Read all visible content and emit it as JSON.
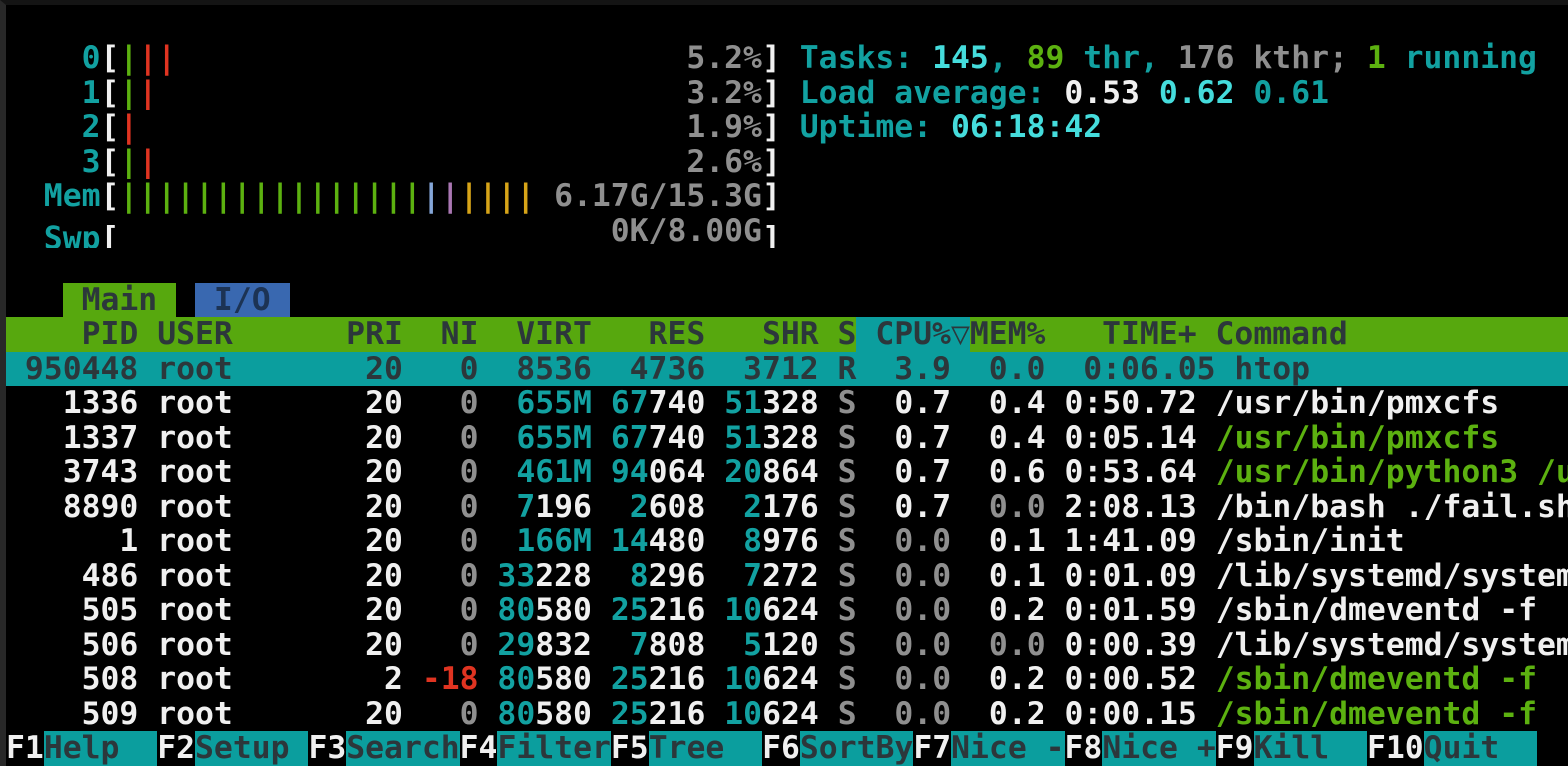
{
  "colors": {
    "background": "#000000",
    "teal": "#12a1a1",
    "bright_cyan": "#45dcdc",
    "green": "#5cb110",
    "red": "#e03421",
    "gray": "#8f8f8f",
    "white": "#f0f0f0",
    "header_bg": "#57a80e",
    "selection_bg": "#0b9e9e",
    "tab_io_bg": "#3968b0",
    "mem_bar_blue": "#85a6d8",
    "mem_bar_purple": "#aa77b3",
    "mem_bar_orange": "#d7a418"
  },
  "meters": {
    "lines": [
      {
        "name": "cpu-meter-0",
        "label": "    0",
        "bars": [
          [
            "|",
            "gn"
          ],
          [
            "||",
            "rd"
          ]
        ],
        "value": "5.2%"
      },
      {
        "name": "cpu-meter-1",
        "label": "    1",
        "bars": [
          [
            "|",
            "gn"
          ],
          [
            "|",
            "rd"
          ]
        ],
        "value": "3.2%"
      },
      {
        "name": "cpu-meter-2",
        "label": "    2",
        "bars": [
          [
            "|",
            "rd"
          ]
        ],
        "value": "1.9%"
      },
      {
        "name": "cpu-meter-3",
        "label": "    3",
        "bars": [
          [
            "|",
            "gn"
          ],
          [
            "|",
            "rd"
          ]
        ],
        "value": "2.6%"
      },
      {
        "name": "memory-meter",
        "label": "  Mem",
        "bars": [
          [
            "||||||||||||||||",
            "gn"
          ],
          [
            "|",
            "bb"
          ],
          [
            "|",
            "bp"
          ],
          [
            "||||",
            "bo"
          ]
        ],
        "value": "6.17G/15.3G"
      },
      {
        "name": "swap-meter",
        "label": "  Swp",
        "bars": [],
        "value": "0K/8.00G"
      }
    ]
  },
  "summary": [
    {
      "name": "tasks-summary",
      "segments": [
        [
          "Tasks: ",
          "te"
        ],
        [
          "145",
          "cy"
        ],
        [
          ", ",
          "te"
        ],
        [
          "89",
          "gn"
        ],
        [
          " thr, ",
          "te"
        ],
        [
          "176 kthr",
          "gy"
        ],
        [
          "; ",
          "gy"
        ],
        [
          "1",
          "gn"
        ],
        [
          " running",
          "te"
        ]
      ]
    },
    {
      "name": "load-average",
      "segments": [
        [
          "Load average: ",
          "te"
        ],
        [
          "0.53",
          "w"
        ],
        [
          " ",
          "te"
        ],
        [
          "0.62",
          "cy"
        ],
        [
          " ",
          "te"
        ],
        [
          "0.61",
          "te"
        ]
      ]
    },
    {
      "name": "uptime",
      "segments": [
        [
          "Uptime: ",
          "te"
        ],
        [
          "06:18:42",
          "cy"
        ]
      ]
    }
  ],
  "tabs": {
    "indent": "   ",
    "main": " Main ",
    "gap": " ",
    "io": " I/O "
  },
  "process_table": {
    "header_segments": [
      [
        "    PID USER      PRI  NI  VIRT   RES   SHR S",
        "dk"
      ],
      [
        " CPU%▽",
        "dk sorted"
      ],
      [
        "MEM%   TIME+ Command",
        "dk"
      ]
    ],
    "rows": [
      {
        "selected": true,
        "segments": [
          [
            " 950448 root       20   0  8536  4736  3712 R  3.9  0.0  0:06.05 htop",
            "dk"
          ]
        ]
      },
      {
        "selected": false,
        "segments": [
          [
            "   1336 ",
            "w"
          ],
          [
            "root      ",
            "w"
          ],
          [
            " 20",
            "w"
          ],
          [
            " ",
            "w"
          ],
          [
            "  0",
            "gy"
          ],
          [
            " ",
            "w"
          ],
          [
            " 655M",
            "te"
          ],
          [
            " ",
            "w"
          ],
          [
            "67",
            "te"
          ],
          [
            "740",
            "w"
          ],
          [
            " ",
            "w"
          ],
          [
            "51",
            "te"
          ],
          [
            "328",
            "w"
          ],
          [
            " ",
            "w"
          ],
          [
            "S",
            "gy"
          ],
          [
            " ",
            "w"
          ],
          [
            " 0.7",
            "w"
          ],
          [
            " ",
            "w"
          ],
          [
            " 0.4",
            "w"
          ],
          [
            " 0:50.72",
            "w"
          ],
          [
            " ",
            "w"
          ],
          [
            "/usr/bin/pmxcfs",
            "w"
          ]
        ]
      },
      {
        "selected": false,
        "segments": [
          [
            "   1337 ",
            "w"
          ],
          [
            "root      ",
            "w"
          ],
          [
            " 20",
            "w"
          ],
          [
            " ",
            "w"
          ],
          [
            "  0",
            "gy"
          ],
          [
            " ",
            "w"
          ],
          [
            " 655M",
            "te"
          ],
          [
            " ",
            "w"
          ],
          [
            "67",
            "te"
          ],
          [
            "740",
            "w"
          ],
          [
            " ",
            "w"
          ],
          [
            "51",
            "te"
          ],
          [
            "328",
            "w"
          ],
          [
            " ",
            "w"
          ],
          [
            "S",
            "gy"
          ],
          [
            " ",
            "w"
          ],
          [
            " 0.7",
            "w"
          ],
          [
            " ",
            "w"
          ],
          [
            " 0.4",
            "w"
          ],
          [
            " 0:05.14",
            "w"
          ],
          [
            " ",
            "w"
          ],
          [
            "/usr/bin/pmxcfs",
            "gn"
          ]
        ]
      },
      {
        "selected": false,
        "segments": [
          [
            "   3743 ",
            "w"
          ],
          [
            "root      ",
            "w"
          ],
          [
            " 20",
            "w"
          ],
          [
            " ",
            "w"
          ],
          [
            "  0",
            "gy"
          ],
          [
            " ",
            "w"
          ],
          [
            " 461M",
            "te"
          ],
          [
            " ",
            "w"
          ],
          [
            "94",
            "te"
          ],
          [
            "064",
            "w"
          ],
          [
            " ",
            "w"
          ],
          [
            "20",
            "te"
          ],
          [
            "864",
            "w"
          ],
          [
            " ",
            "w"
          ],
          [
            "S",
            "gy"
          ],
          [
            " ",
            "w"
          ],
          [
            " 0.7",
            "w"
          ],
          [
            " ",
            "w"
          ],
          [
            " 0.6",
            "w"
          ],
          [
            " 0:53.64",
            "w"
          ],
          [
            " ",
            "w"
          ],
          [
            "/usr/bin/python3 /u",
            "gn"
          ]
        ]
      },
      {
        "selected": false,
        "segments": [
          [
            "   8890 ",
            "w"
          ],
          [
            "root      ",
            "w"
          ],
          [
            " 20",
            "w"
          ],
          [
            " ",
            "w"
          ],
          [
            "  0",
            "gy"
          ],
          [
            " ",
            "w"
          ],
          [
            " 7",
            "te"
          ],
          [
            "196",
            "w"
          ],
          [
            " ",
            "w"
          ],
          [
            " 2",
            "te"
          ],
          [
            "608",
            "w"
          ],
          [
            " ",
            "w"
          ],
          [
            " 2",
            "te"
          ],
          [
            "176",
            "w"
          ],
          [
            " ",
            "w"
          ],
          [
            "S",
            "gy"
          ],
          [
            " ",
            "w"
          ],
          [
            " 0.7",
            "w"
          ],
          [
            " ",
            "w"
          ],
          [
            " 0.0",
            "gy"
          ],
          [
            " 2:08.13",
            "w"
          ],
          [
            " ",
            "w"
          ],
          [
            "/bin/bash ./fail.sh",
            "w"
          ]
        ]
      },
      {
        "selected": false,
        "segments": [
          [
            "      1 ",
            "w"
          ],
          [
            "root      ",
            "w"
          ],
          [
            " 20",
            "w"
          ],
          [
            " ",
            "w"
          ],
          [
            "  0",
            "gy"
          ],
          [
            " ",
            "w"
          ],
          [
            " 166M",
            "te"
          ],
          [
            " ",
            "w"
          ],
          [
            "14",
            "te"
          ],
          [
            "480",
            "w"
          ],
          [
            " ",
            "w"
          ],
          [
            " 8",
            "te"
          ],
          [
            "976",
            "w"
          ],
          [
            " ",
            "w"
          ],
          [
            "S",
            "gy"
          ],
          [
            " ",
            "w"
          ],
          [
            " 0.0",
            "gy"
          ],
          [
            " ",
            "w"
          ],
          [
            " 0.1",
            "w"
          ],
          [
            " 1:41.09",
            "w"
          ],
          [
            " ",
            "w"
          ],
          [
            "/sbin/init",
            "w"
          ]
        ]
      },
      {
        "selected": false,
        "segments": [
          [
            "    486 ",
            "w"
          ],
          [
            "root      ",
            "w"
          ],
          [
            " 20",
            "w"
          ],
          [
            " ",
            "w"
          ],
          [
            "  0",
            "gy"
          ],
          [
            " ",
            "w"
          ],
          [
            "33",
            "te"
          ],
          [
            "228",
            "w"
          ],
          [
            " ",
            "w"
          ],
          [
            " 8",
            "te"
          ],
          [
            "296",
            "w"
          ],
          [
            " ",
            "w"
          ],
          [
            " 7",
            "te"
          ],
          [
            "272",
            "w"
          ],
          [
            " ",
            "w"
          ],
          [
            "S",
            "gy"
          ],
          [
            " ",
            "w"
          ],
          [
            " 0.0",
            "gy"
          ],
          [
            " ",
            "w"
          ],
          [
            " 0.1",
            "w"
          ],
          [
            " 0:01.09",
            "w"
          ],
          [
            " ",
            "w"
          ],
          [
            "/lib/systemd/system",
            "w"
          ]
        ]
      },
      {
        "selected": false,
        "segments": [
          [
            "    505 ",
            "w"
          ],
          [
            "root      ",
            "w"
          ],
          [
            " 20",
            "w"
          ],
          [
            " ",
            "w"
          ],
          [
            "  0",
            "gy"
          ],
          [
            " ",
            "w"
          ],
          [
            "80",
            "te"
          ],
          [
            "580",
            "w"
          ],
          [
            " ",
            "w"
          ],
          [
            "25",
            "te"
          ],
          [
            "216",
            "w"
          ],
          [
            " ",
            "w"
          ],
          [
            "10",
            "te"
          ],
          [
            "624",
            "w"
          ],
          [
            " ",
            "w"
          ],
          [
            "S",
            "gy"
          ],
          [
            " ",
            "w"
          ],
          [
            " 0.0",
            "gy"
          ],
          [
            " ",
            "w"
          ],
          [
            " 0.2",
            "w"
          ],
          [
            " 0:01.59",
            "w"
          ],
          [
            " ",
            "w"
          ],
          [
            "/sbin/dmeventd -f",
            "w"
          ]
        ]
      },
      {
        "selected": false,
        "segments": [
          [
            "    506 ",
            "w"
          ],
          [
            "root      ",
            "w"
          ],
          [
            " 20",
            "w"
          ],
          [
            " ",
            "w"
          ],
          [
            "  0",
            "gy"
          ],
          [
            " ",
            "w"
          ],
          [
            "29",
            "te"
          ],
          [
            "832",
            "w"
          ],
          [
            " ",
            "w"
          ],
          [
            " 7",
            "te"
          ],
          [
            "808",
            "w"
          ],
          [
            " ",
            "w"
          ],
          [
            " 5",
            "te"
          ],
          [
            "120",
            "w"
          ],
          [
            " ",
            "w"
          ],
          [
            "S",
            "gy"
          ],
          [
            " ",
            "w"
          ],
          [
            " 0.0",
            "gy"
          ],
          [
            " ",
            "w"
          ],
          [
            " 0.0",
            "gy"
          ],
          [
            " 0:00.39",
            "w"
          ],
          [
            " ",
            "w"
          ],
          [
            "/lib/systemd/system",
            "w"
          ]
        ]
      },
      {
        "selected": false,
        "segments": [
          [
            "    508 ",
            "w"
          ],
          [
            "root      ",
            "w"
          ],
          [
            "  2",
            "w"
          ],
          [
            " ",
            "w"
          ],
          [
            "-18",
            "rd"
          ],
          [
            " ",
            "w"
          ],
          [
            "80",
            "te"
          ],
          [
            "580",
            "w"
          ],
          [
            " ",
            "w"
          ],
          [
            "25",
            "te"
          ],
          [
            "216",
            "w"
          ],
          [
            " ",
            "w"
          ],
          [
            "10",
            "te"
          ],
          [
            "624",
            "w"
          ],
          [
            " ",
            "w"
          ],
          [
            "S",
            "gy"
          ],
          [
            " ",
            "w"
          ],
          [
            " 0.0",
            "gy"
          ],
          [
            " ",
            "w"
          ],
          [
            " 0.2",
            "w"
          ],
          [
            " 0:00.52",
            "w"
          ],
          [
            " ",
            "w"
          ],
          [
            "/sbin/dmeventd -f",
            "gn"
          ]
        ]
      },
      {
        "selected": false,
        "segments": [
          [
            "    509 ",
            "w"
          ],
          [
            "root      ",
            "w"
          ],
          [
            " 20",
            "w"
          ],
          [
            " ",
            "w"
          ],
          [
            "  0",
            "gy"
          ],
          [
            " ",
            "w"
          ],
          [
            "80",
            "te"
          ],
          [
            "580",
            "w"
          ],
          [
            " ",
            "w"
          ],
          [
            "25",
            "te"
          ],
          [
            "216",
            "w"
          ],
          [
            " ",
            "w"
          ],
          [
            "10",
            "te"
          ],
          [
            "624",
            "w"
          ],
          [
            " ",
            "w"
          ],
          [
            "S",
            "gy"
          ],
          [
            " ",
            "w"
          ],
          [
            " 0.0",
            "gy"
          ],
          [
            " ",
            "w"
          ],
          [
            " 0.2",
            "w"
          ],
          [
            " 0:00.15",
            "w"
          ],
          [
            " ",
            "w"
          ],
          [
            "/sbin/dmeventd -f",
            "gn"
          ]
        ]
      }
    ]
  },
  "fnbar": {
    "items": [
      {
        "key": "F1",
        "label": "Help  "
      },
      {
        "key": "F2",
        "label": "Setup "
      },
      {
        "key": "F3",
        "label": "Search"
      },
      {
        "key": "F4",
        "label": "Filter"
      },
      {
        "key": "F5",
        "label": "Tree  "
      },
      {
        "key": "F6",
        "label": "SortBy"
      },
      {
        "key": "F7",
        "label": "Nice -"
      },
      {
        "key": "F8",
        "label": "Nice +"
      },
      {
        "key": "F9",
        "label": "Kill  "
      },
      {
        "key": "F10",
        "label": "Quit  "
      }
    ]
  }
}
